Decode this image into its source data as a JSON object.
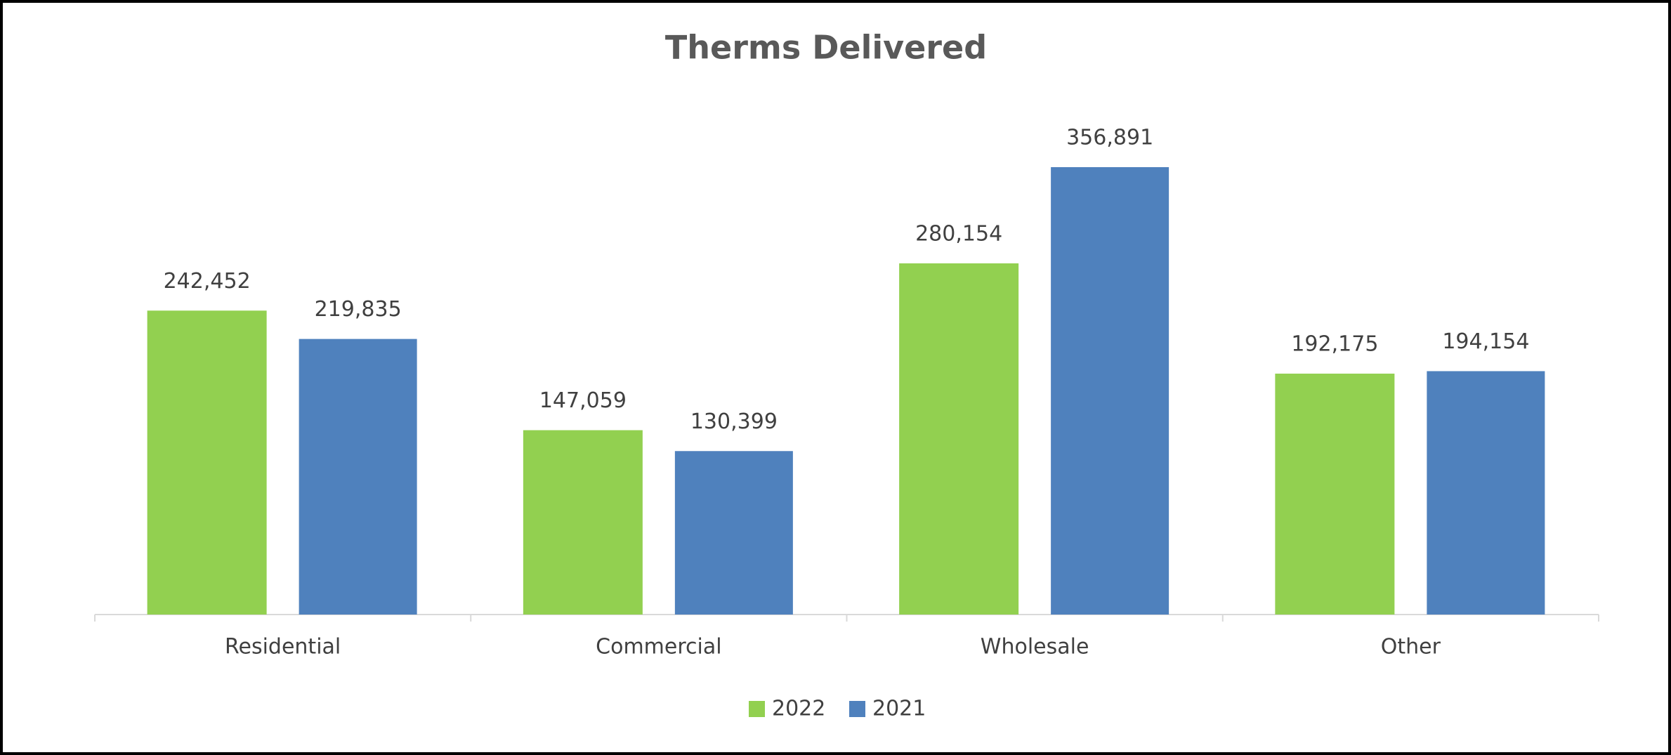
{
  "chart_data": {
    "type": "bar",
    "title": "Therms Delivered",
    "categories": [
      "Residential",
      "Commercial",
      "Wholesale",
      "Other"
    ],
    "series": [
      {
        "name": "2022",
        "color": "#92d050",
        "values": [
          242452,
          147059,
          280154,
          192175
        ],
        "value_labels": [
          "242,452",
          "147,059",
          "280,154",
          "192,175"
        ]
      },
      {
        "name": "2021",
        "color": "#4f81bd",
        "values": [
          219835,
          130399,
          356891,
          194154
        ],
        "value_labels": [
          "219,835",
          "130,399",
          "356,891",
          "194,154"
        ]
      }
    ],
    "legend": "bottom"
  }
}
